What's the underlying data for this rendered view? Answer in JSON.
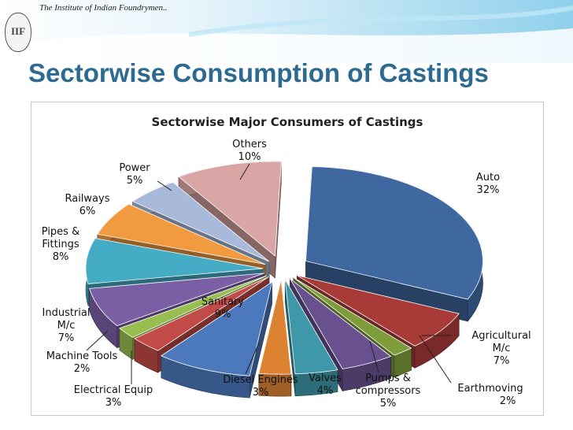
{
  "header": {
    "org_name": "The Institute of Indian Foundrymen..",
    "logo_text": "IIF",
    "slide_title": "Sectorwise Consumption of Castings"
  },
  "chart_data": {
    "type": "pie",
    "title": "Sectorwise Major Consumers of Castings",
    "unit": "%",
    "slices": [
      {
        "label": "Auto",
        "value": 32,
        "value_label": "32%",
        "color": "#3f67a0"
      },
      {
        "label": "Agricultural M/c",
        "value": 7,
        "value_label": "7%",
        "color": "#a83b38"
      },
      {
        "label": "Earthmoving",
        "value": 2,
        "value_label": "2%",
        "color": "#7f9c3a"
      },
      {
        "label": "Pumps & compressors",
        "value": 5,
        "value_label": "5%",
        "color": "#69508f"
      },
      {
        "label": "Valves",
        "value": 4,
        "value_label": "4%",
        "color": "#3f97aa"
      },
      {
        "label": "Diesel Engines",
        "value": 3,
        "value_label": "3%",
        "color": "#dd8230"
      },
      {
        "label": "Sanitary",
        "value": 9,
        "value_label": "9%",
        "color": "#4c79be"
      },
      {
        "label": "Electrical Equip",
        "value": 3,
        "value_label": "3%",
        "color": "#c24b47"
      },
      {
        "label": "Machine Tools",
        "value": 2,
        "value_label": "2%",
        "color": "#98bd50"
      },
      {
        "label": "Industrial M/c",
        "value": 7,
        "value_label": "7%",
        "color": "#7b5fa5"
      },
      {
        "label": "Pipes & Fittings",
        "value": 8,
        "value_label": "8%",
        "color": "#45acc6"
      },
      {
        "label": "Railways",
        "value": 6,
        "value_label": "6%",
        "color": "#f19a3f"
      },
      {
        "label": "Power",
        "value": 5,
        "value_label": "5%",
        "color": "#a9b9d9"
      },
      {
        "label": "Others",
        "value": 10,
        "value_label": "10%",
        "color": "#d9a6a5"
      }
    ]
  }
}
